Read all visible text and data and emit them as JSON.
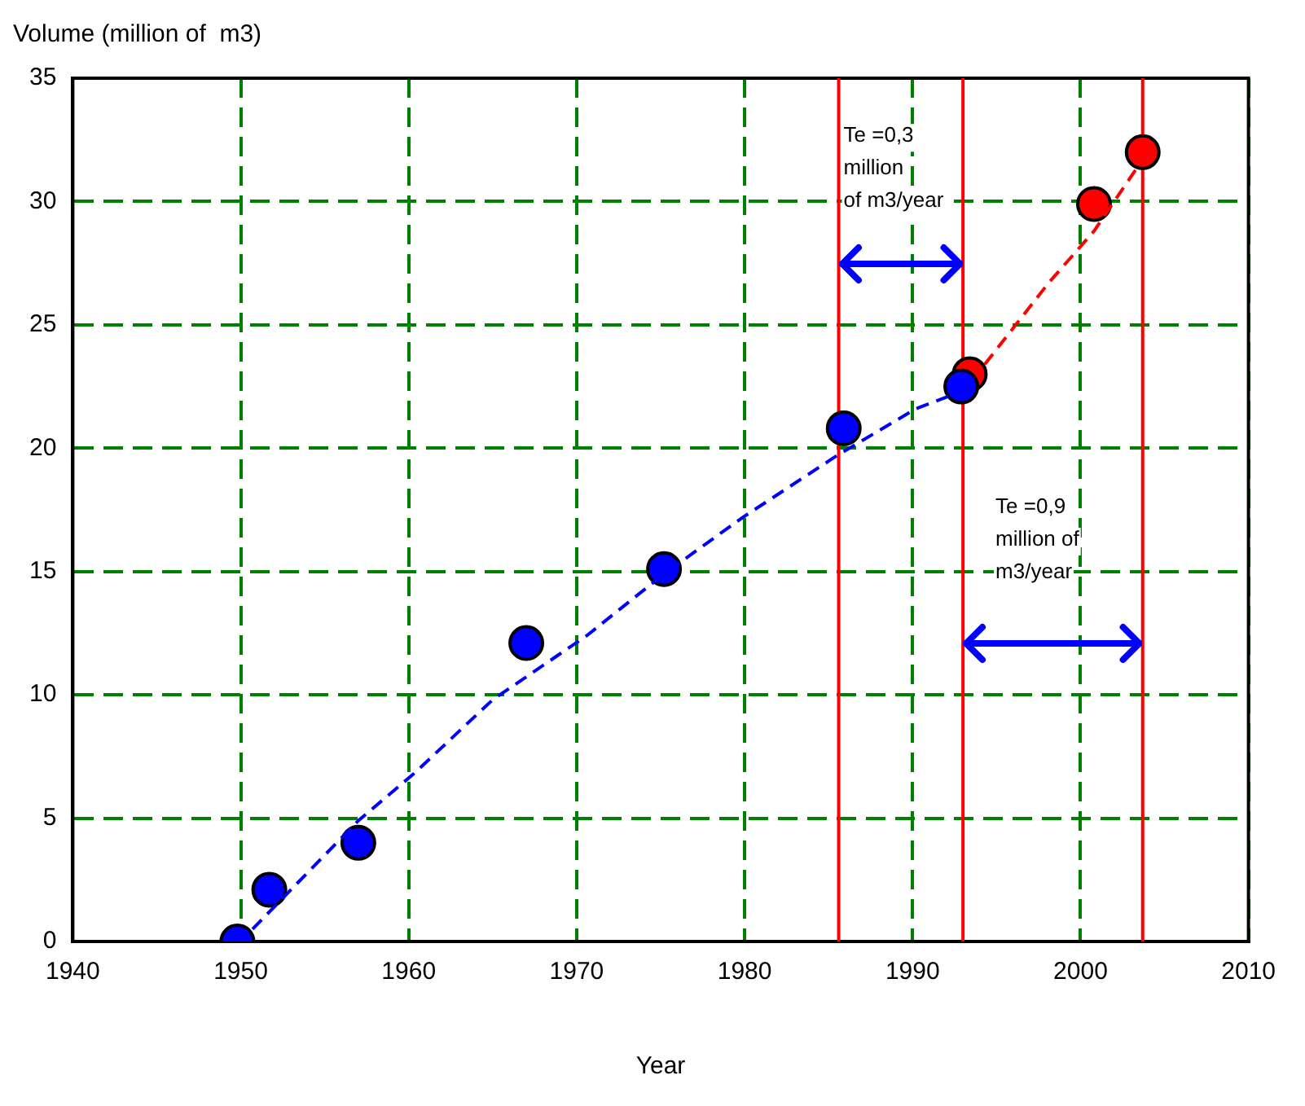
{
  "chart_data": {
    "type": "scatter",
    "xlabel": "Year",
    "ylabel": "Volume (million of  m3)",
    "xlim": [
      1940,
      2010
    ],
    "xticks": [
      1940,
      1950,
      1960,
      1970,
      1980,
      1990,
      2000,
      2010
    ],
    "ylim": [
      0,
      35
    ],
    "yticks": [
      0,
      5,
      10,
      15,
      20,
      25,
      30,
      35
    ],
    "grid": true,
    "legend": false,
    "series": [
      {
        "type": "line",
        "color": "#0000ff",
        "marker": "none",
        "line_style": "dashed",
        "x": [
          1950.7,
          1957,
          1960.3,
          1965,
          1970.6,
          1975.2,
          1979.9,
          1985.5,
          1990.2,
          1992.5
        ],
        "values": [
          0.5,
          4.9,
          6.8,
          9.8,
          12.4,
          14.9,
          17.2,
          19.7,
          21.6,
          22.2
        ]
      },
      {
        "type": "line",
        "color": "#ff0000",
        "marker": "none",
        "line_style": "dashed",
        "x": [
          1994.3,
          1998.1,
          2000.8,
          2003.7
        ],
        "values": [
          23.4,
          26.7,
          28.8,
          31.7
        ]
      },
      {
        "type": "scatter",
        "color": "#0000ff",
        "marker": "circle",
        "x": [
          1949.8,
          1951.7,
          1957.0,
          1967.0,
          1975.2,
          1985.9,
          1992.9
        ],
        "values": [
          0,
          2.1,
          4.0,
          12.1,
          15.1,
          20.8,
          22.5
        ]
      },
      {
        "type": "scatter",
        "color": "#ff0000",
        "marker": "circle",
        "x": [
          1993.4,
          2000.8,
          2003.7
        ],
        "values": [
          23.0,
          29.9,
          32.0
        ]
      }
    ],
    "ref_lines": [
      {
        "axis": "x",
        "value": 1985.6,
        "color": "#ff0000",
        "line_style": "solid"
      },
      {
        "axis": "x",
        "value": 1993.0,
        "color": "#ff0000",
        "line_style": "solid"
      },
      {
        "axis": "x",
        "value": 2003.7,
        "color": "#ff0000",
        "line_style": "solid"
      }
    ],
    "annotations": [
      "Te =0,3\nmillion\nof m3/year",
      "Te =0,9\nmillion of\nm3/year"
    ]
  }
}
